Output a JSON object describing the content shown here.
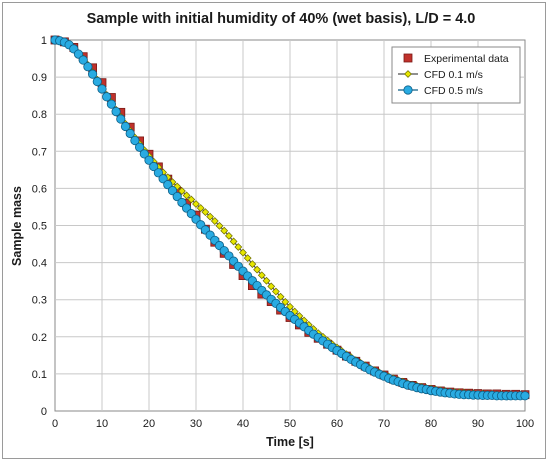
{
  "chart_data": {
    "type": "scatter",
    "title": "Sample with initial humidity of 40% (wet basis), L/D = 4.0",
    "xlabel": "Time [s]",
    "ylabel": "Sample mass",
    "xlim": [
      0,
      100
    ],
    "ylim": [
      0,
      1
    ],
    "xticks": [
      "0",
      "10",
      "20",
      "30",
      "40",
      "50",
      "60",
      "70",
      "80",
      "90",
      "100"
    ],
    "yticks": [
      "0",
      "0.1",
      "0.2",
      "0.3",
      "0.4",
      "0.5",
      "0.6",
      "0.7",
      "0.8",
      "0.9",
      "1"
    ],
    "grid": true,
    "legend_position": "top-right",
    "series": [
      {
        "name": "Experimental data",
        "marker": "square",
        "color": "#c0312b",
        "points": [
          [
            0,
            1.0
          ],
          [
            2,
            0.995
          ],
          [
            4,
            0.98
          ],
          [
            6,
            0.955
          ],
          [
            8,
            0.925
          ],
          [
            10,
            0.885
          ],
          [
            12,
            0.845
          ],
          [
            14,
            0.805
          ],
          [
            16,
            0.765
          ],
          [
            18,
            0.728
          ],
          [
            20,
            0.692
          ],
          [
            22,
            0.658
          ],
          [
            24,
            0.625
          ],
          [
            26,
            0.592
          ],
          [
            28,
            0.56
          ],
          [
            30,
            0.528
          ],
          [
            32,
            0.49
          ],
          [
            34,
            0.455
          ],
          [
            36,
            0.425
          ],
          [
            38,
            0.395
          ],
          [
            40,
            0.365
          ],
          [
            42,
            0.338
          ],
          [
            44,
            0.315
          ],
          [
            46,
            0.295
          ],
          [
            48,
            0.272
          ],
          [
            50,
            0.252
          ],
          [
            52,
            0.232
          ],
          [
            54,
            0.212
          ],
          [
            56,
            0.196
          ],
          [
            58,
            0.18
          ],
          [
            60,
            0.164
          ],
          [
            62,
            0.148
          ],
          [
            64,
            0.134
          ],
          [
            66,
            0.121
          ],
          [
            68,
            0.108
          ],
          [
            70,
            0.097
          ],
          [
            72,
            0.086
          ],
          [
            74,
            0.077
          ],
          [
            76,
            0.069
          ],
          [
            78,
            0.063
          ],
          [
            80,
            0.058
          ],
          [
            82,
            0.054
          ],
          [
            84,
            0.051
          ],
          [
            86,
            0.049
          ],
          [
            88,
            0.048
          ],
          [
            90,
            0.047
          ],
          [
            92,
            0.046
          ],
          [
            94,
            0.046
          ],
          [
            96,
            0.045
          ],
          [
            98,
            0.045
          ],
          [
            100,
            0.044
          ]
        ]
      },
      {
        "name": "CFD 0.1 m/s",
        "marker": "diamond",
        "color": "#e6e600",
        "points": [
          [
            0,
            1.0
          ],
          [
            1,
            0.998
          ],
          [
            2,
            0.994
          ],
          [
            3,
            0.988
          ],
          [
            4,
            0.978
          ],
          [
            5,
            0.965
          ],
          [
            6,
            0.95
          ],
          [
            7,
            0.933
          ],
          [
            8,
            0.913
          ],
          [
            9,
            0.893
          ],
          [
            10,
            0.872
          ],
          [
            11,
            0.852
          ],
          [
            12,
            0.832
          ],
          [
            13,
            0.812
          ],
          [
            14,
            0.793
          ],
          [
            15,
            0.774
          ],
          [
            16,
            0.755
          ],
          [
            17,
            0.737
          ],
          [
            18,
            0.72
          ],
          [
            19,
            0.703
          ],
          [
            20,
            0.687
          ],
          [
            21,
            0.672
          ],
          [
            22,
            0.657
          ],
          [
            23,
            0.643
          ],
          [
            24,
            0.63
          ],
          [
            25,
            0.617
          ],
          [
            26,
            0.605
          ],
          [
            27,
            0.593
          ],
          [
            28,
            0.581
          ],
          [
            29,
            0.57
          ],
          [
            30,
            0.558
          ],
          [
            31,
            0.547
          ],
          [
            32,
            0.536
          ],
          [
            33,
            0.524
          ],
          [
            34,
            0.512
          ],
          [
            35,
            0.499
          ],
          [
            36,
            0.486
          ],
          [
            37,
            0.472
          ],
          [
            38,
            0.457
          ],
          [
            39,
            0.442
          ],
          [
            40,
            0.427
          ],
          [
            41,
            0.412
          ],
          [
            42,
            0.396
          ],
          [
            43,
            0.381
          ],
          [
            44,
            0.366
          ],
          [
            45,
            0.351
          ],
          [
            46,
            0.336
          ],
          [
            47,
            0.322
          ],
          [
            48,
            0.308
          ],
          [
            49,
            0.294
          ],
          [
            50,
            0.281
          ],
          [
            51,
            0.268
          ],
          [
            52,
            0.256
          ],
          [
            53,
            0.244
          ],
          [
            54,
            0.232
          ],
          [
            55,
            0.221
          ],
          [
            56,
            0.21
          ],
          [
            57,
            0.2
          ],
          [
            58,
            0.19
          ],
          [
            59,
            0.18
          ],
          [
            60,
            0.171
          ],
          [
            61,
            0.162
          ],
          [
            62,
            0.153
          ],
          [
            63,
            0.145
          ],
          [
            64,
            0.137
          ],
          [
            65,
            0.13
          ],
          [
            66,
            0.123
          ],
          [
            67,
            0.116
          ],
          [
            68,
            0.11
          ],
          [
            69,
            0.104
          ],
          [
            70,
            0.098
          ],
          [
            71,
            0.093
          ],
          [
            72,
            0.088
          ],
          [
            73,
            0.083
          ],
          [
            74,
            0.079
          ],
          [
            75,
            0.075
          ],
          [
            76,
            0.071
          ],
          [
            77,
            0.068
          ],
          [
            78,
            0.065
          ],
          [
            79,
            0.062
          ],
          [
            80,
            0.06
          ],
          [
            81,
            0.058
          ],
          [
            82,
            0.056
          ],
          [
            83,
            0.054
          ],
          [
            84,
            0.052
          ],
          [
            85,
            0.051
          ],
          [
            86,
            0.05
          ],
          [
            87,
            0.049
          ],
          [
            88,
            0.048
          ],
          [
            89,
            0.047
          ],
          [
            90,
            0.046
          ],
          [
            91,
            0.046
          ],
          [
            92,
            0.045
          ],
          [
            93,
            0.045
          ],
          [
            94,
            0.044
          ],
          [
            95,
            0.044
          ],
          [
            96,
            0.044
          ],
          [
            97,
            0.043
          ],
          [
            98,
            0.043
          ],
          [
            99,
            0.043
          ],
          [
            100,
            0.043
          ]
        ]
      },
      {
        "name": "CFD 0.5 m/s",
        "marker": "circle",
        "color": "#29abe2",
        "points": [
          [
            0,
            1.0
          ],
          [
            1,
            0.998
          ],
          [
            2,
            0.994
          ],
          [
            3,
            0.987
          ],
          [
            4,
            0.976
          ],
          [
            5,
            0.962
          ],
          [
            6,
            0.946
          ],
          [
            7,
            0.928
          ],
          [
            8,
            0.908
          ],
          [
            9,
            0.888
          ],
          [
            10,
            0.868
          ],
          [
            11,
            0.847
          ],
          [
            12,
            0.827
          ],
          [
            13,
            0.807
          ],
          [
            14,
            0.787
          ],
          [
            15,
            0.767
          ],
          [
            16,
            0.748
          ],
          [
            17,
            0.729
          ],
          [
            18,
            0.711
          ],
          [
            19,
            0.693
          ],
          [
            20,
            0.676
          ],
          [
            21,
            0.659
          ],
          [
            22,
            0.642
          ],
          [
            23,
            0.626
          ],
          [
            24,
            0.61
          ],
          [
            25,
            0.594
          ],
          [
            26,
            0.578
          ],
          [
            27,
            0.562
          ],
          [
            28,
            0.547
          ],
          [
            29,
            0.532
          ],
          [
            30,
            0.517
          ],
          [
            31,
            0.502
          ],
          [
            32,
            0.488
          ],
          [
            33,
            0.474
          ],
          [
            34,
            0.46
          ],
          [
            35,
            0.446
          ],
          [
            36,
            0.432
          ],
          [
            37,
            0.418
          ],
          [
            38,
            0.404
          ],
          [
            39,
            0.39
          ],
          [
            40,
            0.377
          ],
          [
            41,
            0.364
          ],
          [
            42,
            0.351
          ],
          [
            43,
            0.338
          ],
          [
            44,
            0.325
          ],
          [
            45,
            0.313
          ],
          [
            46,
            0.301
          ],
          [
            47,
            0.29
          ],
          [
            48,
            0.279
          ],
          [
            49,
            0.268
          ],
          [
            50,
            0.257
          ],
          [
            51,
            0.247
          ],
          [
            52,
            0.237
          ],
          [
            53,
            0.227
          ],
          [
            54,
            0.217
          ],
          [
            55,
            0.207
          ],
          [
            56,
            0.198
          ],
          [
            57,
            0.189
          ],
          [
            58,
            0.18
          ],
          [
            59,
            0.171
          ],
          [
            60,
            0.163
          ],
          [
            61,
            0.155
          ],
          [
            62,
            0.147
          ],
          [
            63,
            0.139
          ],
          [
            64,
            0.132
          ],
          [
            65,
            0.125
          ],
          [
            66,
            0.118
          ],
          [
            67,
            0.111
          ],
          [
            68,
            0.105
          ],
          [
            69,
            0.099
          ],
          [
            70,
            0.094
          ],
          [
            71,
            0.088
          ],
          [
            72,
            0.083
          ],
          [
            73,
            0.079
          ],
          [
            74,
            0.074
          ],
          [
            75,
            0.07
          ],
          [
            76,
            0.067
          ],
          [
            77,
            0.063
          ],
          [
            78,
            0.06
          ],
          [
            79,
            0.058
          ],
          [
            80,
            0.055
          ],
          [
            81,
            0.053
          ],
          [
            82,
            0.051
          ],
          [
            83,
            0.049
          ],
          [
            84,
            0.048
          ],
          [
            85,
            0.046
          ],
          [
            86,
            0.045
          ],
          [
            87,
            0.044
          ],
          [
            88,
            0.044
          ],
          [
            89,
            0.043
          ],
          [
            90,
            0.043
          ],
          [
            91,
            0.042
          ],
          [
            92,
            0.042
          ],
          [
            93,
            0.042
          ],
          [
            94,
            0.041
          ],
          [
            95,
            0.041
          ],
          [
            96,
            0.041
          ],
          [
            97,
            0.041
          ],
          [
            98,
            0.041
          ],
          [
            99,
            0.041
          ],
          [
            100,
            0.041
          ]
        ]
      }
    ]
  }
}
